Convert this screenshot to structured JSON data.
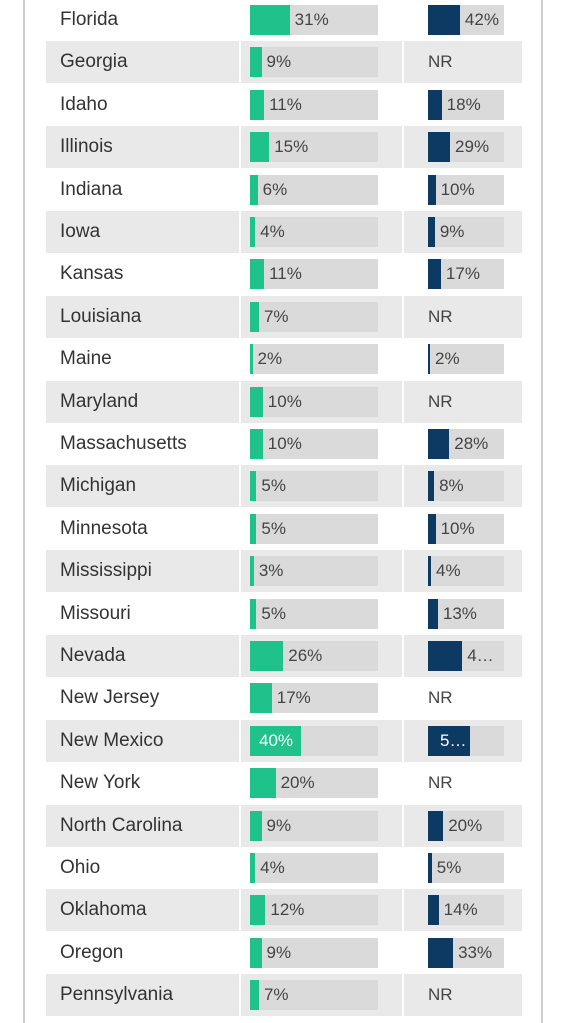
{
  "colors": {
    "series1": "#1fc28a",
    "series2": "#0d3a62",
    "track": "#dadada",
    "row_shade": "#e9e9e9"
  },
  "chart_data": {
    "type": "bar",
    "categories": [
      "Florida",
      "Georgia",
      "Idaho",
      "Illinois",
      "Indiana",
      "Iowa",
      "Kansas",
      "Louisiana",
      "Maine",
      "Maryland",
      "Massachusetts",
      "Michigan",
      "Minnesota",
      "Mississippi",
      "Missouri",
      "Nevada",
      "New Jersey",
      "New Mexico",
      "New York",
      "North Carolina",
      "Ohio",
      "Oklahoma",
      "Oregon",
      "Pennsylvania"
    ],
    "series": [
      {
        "values": [
          31,
          9,
          11,
          15,
          6,
          4,
          11,
          7,
          2,
          10,
          10,
          5,
          5,
          3,
          5,
          26,
          17,
          40,
          20,
          9,
          4,
          12,
          9,
          7
        ],
        "labels": [
          "31%",
          "9%",
          "11%",
          "15%",
          "6%",
          "4%",
          "11%",
          "7%",
          "2%",
          "10%",
          "10%",
          "5%",
          "5%",
          "3%",
          "5%",
          "26%",
          "17%",
          "40%",
          "20%",
          "9%",
          "4%",
          "12%",
          "9%",
          "7%"
        ],
        "max": 100
      },
      {
        "values": [
          42,
          null,
          18,
          29,
          10,
          9,
          17,
          null,
          2,
          null,
          28,
          8,
          10,
          4,
          13,
          45,
          null,
          55,
          null,
          20,
          5,
          14,
          33,
          null
        ],
        "labels": [
          "42%",
          "NR",
          "18%",
          "29%",
          "10%",
          "9%",
          "17%",
          "NR",
          "2%",
          "NR",
          "28%",
          "8%",
          "10%",
          "4%",
          "13%",
          "4…",
          "NR",
          "5…",
          "NR",
          "20%",
          "5%",
          "14%",
          "33%",
          "NR"
        ],
        "max": 100
      }
    ],
    "ylim": [
      0,
      100
    ]
  }
}
